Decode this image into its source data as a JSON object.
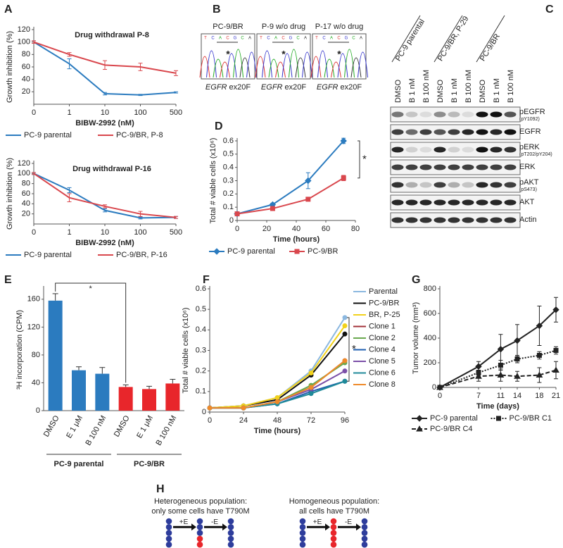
{
  "chart_data": [
    {
      "type": "line",
      "panel": "A",
      "title": "Drug withdrawal P-8",
      "ylabel": "Growth inhibition (%)",
      "xlabel": "BIBW-2992 (nM)",
      "categories": [
        "0",
        "1",
        "10",
        "100",
        "500"
      ],
      "ylim": [
        0,
        120
      ],
      "yticks": [
        20,
        40,
        60,
        80,
        100,
        120
      ],
      "legend": "bottom",
      "series": [
        {
          "name": "PC-9 parental",
          "color": "#2b7bbf",
          "marker": "none",
          "dash": "solid",
          "values": [
            100,
            65,
            17,
            15,
            19
          ],
          "errors": [
            2,
            8,
            2,
            1,
            1
          ]
        },
        {
          "name": "PC-9/BR, P-8",
          "color": "#d9474d",
          "marker": "none",
          "dash": "solid",
          "values": [
            100,
            80,
            63,
            60,
            50
          ],
          "errors": [
            2,
            3,
            7,
            6,
            4
          ]
        }
      ]
    },
    {
      "type": "line",
      "title": "Drug withdrawal P-16",
      "ylabel": "Growth inhibition (%)",
      "xlabel": "BIBW-2992 (nM)",
      "categories": [
        "0",
        "1",
        "10",
        "100",
        "500"
      ],
      "ylim": [
        0,
        120
      ],
      "yticks": [
        20,
        40,
        60,
        80,
        100,
        120
      ],
      "legend": "bottom",
      "series": [
        {
          "name": "PC-9 parental",
          "color": "#2b7bbf",
          "marker": "none",
          "dash": "solid",
          "values": [
            100,
            67,
            27,
            12,
            13
          ],
          "errors": [
            2,
            5,
            3,
            2,
            2
          ]
        },
        {
          "name": "PC-9/BR, P-16",
          "color": "#d9474d",
          "marker": "none",
          "dash": "solid",
          "values": [
            100,
            52,
            35,
            20,
            13
          ],
          "errors": [
            2,
            8,
            3,
            5,
            2
          ]
        }
      ]
    },
    {
      "type": "line",
      "panel": "D",
      "ylabel": "Total # viable cells (x10⁶)",
      "xlabel": "Time (hours)",
      "x": [
        0,
        24,
        48,
        72
      ],
      "xlim": [
        0,
        80
      ],
      "xticks": [
        0,
        20,
        40,
        60,
        80
      ],
      "ylim": [
        0,
        0.6
      ],
      "yticks": [
        0,
        0.1,
        0.2,
        0.3,
        0.4,
        0.5,
        0.6
      ],
      "legend": "bottom",
      "annotations": [
        "*"
      ],
      "series": [
        {
          "name": "PC-9 parental",
          "color": "#2b7bbf",
          "marker": "diamond",
          "dash": "solid",
          "values": [
            0.05,
            0.12,
            0.3,
            0.6
          ],
          "errors": [
            0.01,
            0.01,
            0.06,
            0.02
          ]
        },
        {
          "name": "PC-9/BR",
          "color": "#d9474d",
          "marker": "square",
          "dash": "solid",
          "values": [
            0.05,
            0.09,
            0.16,
            0.32
          ],
          "errors": [
            0.01,
            0.01,
            0.01,
            0.02
          ]
        }
      ]
    },
    {
      "type": "bar",
      "panel": "E",
      "ylabel": "³H incorporation (CPM)",
      "categories": [
        "DMSO",
        "E 1 μM",
        "B 100 nM",
        "DMSO",
        "E 1 μM",
        "B 100 nM"
      ],
      "values": [
        158,
        58,
        53,
        34,
        31,
        39
      ],
      "errors": [
        10,
        5,
        9,
        3,
        4,
        6
      ],
      "colors": [
        "#2b7bbf",
        "#2b7bbf",
        "#2b7bbf",
        "#e8262b",
        "#e8262b",
        "#e8262b"
      ],
      "groups": [
        "PC-9 parental",
        "PC-9/BR"
      ],
      "ylim": [
        0,
        175
      ],
      "yticks": [
        0,
        40,
        80,
        120,
        160
      ],
      "annotations": [
        "*"
      ]
    },
    {
      "type": "line",
      "panel": "F",
      "ylabel": "Total # viable cells (x10⁶)",
      "xlabel": "Time (hours)",
      "x": [
        0,
        24,
        48,
        72,
        96
      ],
      "xlim": [
        0,
        96
      ],
      "xticks": [
        0,
        24,
        48,
        72,
        96
      ],
      "ylim": [
        0,
        0.6
      ],
      "yticks": [
        0,
        0.1,
        0.2,
        0.3,
        0.4,
        0.5,
        0.6
      ],
      "legend": "right",
      "annotations": [
        "*"
      ],
      "series": [
        {
          "name": "Parental",
          "color": "#8cb8e0",
          "marker": "circle",
          "dash": "solid",
          "values": [
            0.02,
            0.03,
            0.07,
            0.2,
            0.46
          ]
        },
        {
          "name": "PC-9/BR",
          "color": "#111111",
          "marker": "circle",
          "dash": "solid",
          "values": [
            0.02,
            0.03,
            0.06,
            0.18,
            0.38
          ]
        },
        {
          "name": "BR, P-25",
          "color": "#f2d21b",
          "marker": "circle",
          "dash": "solid",
          "values": [
            0.02,
            0.03,
            0.07,
            0.19,
            0.42
          ]
        },
        {
          "name": "Clone 1",
          "color": "#a3333a",
          "marker": "circle",
          "dash": "solid",
          "values": [
            0.02,
            0.02,
            0.05,
            0.12,
            0.25
          ]
        },
        {
          "name": "Clone 2",
          "color": "#6aa84f",
          "marker": "circle",
          "dash": "solid",
          "values": [
            0.02,
            0.02,
            0.05,
            0.13,
            0.24
          ]
        },
        {
          "name": "Clone 4",
          "color": "#1f5fb0",
          "marker": "circle",
          "dash": "solid",
          "values": [
            0.02,
            0.02,
            0.04,
            0.1,
            0.15
          ]
        },
        {
          "name": "Clone 5",
          "color": "#7b4fa8",
          "marker": "circle",
          "dash": "solid",
          "values": [
            0.02,
            0.02,
            0.05,
            0.11,
            0.2
          ]
        },
        {
          "name": "Clone 6",
          "color": "#1f8a99",
          "marker": "circle",
          "dash": "solid",
          "values": [
            0.02,
            0.02,
            0.04,
            0.09,
            0.15
          ]
        },
        {
          "name": "Clone 8",
          "color": "#ef8a2a",
          "marker": "circle",
          "dash": "solid",
          "values": [
            0.02,
            0.02,
            0.05,
            0.12,
            0.25
          ]
        }
      ]
    },
    {
      "type": "line",
      "panel": "G",
      "ylabel": "Tumor volume (mm³)",
      "xlabel": "Time (days)",
      "x": [
        0,
        7,
        11,
        14,
        18,
        21
      ],
      "xlim": [
        0,
        21
      ],
      "xticks": [
        0,
        7,
        11,
        14,
        18,
        21
      ],
      "ylim": [
        0,
        800
      ],
      "yticks": [
        0,
        200,
        400,
        600,
        800
      ],
      "legend": "bottom",
      "series": [
        {
          "name": "PC-9 parental",
          "color": "#222222",
          "marker": "diamond",
          "dash": "solid",
          "values": [
            0,
            170,
            310,
            380,
            500,
            630
          ],
          "errors": [
            10,
            40,
            120,
            130,
            160,
            100
          ]
        },
        {
          "name": "PC-9/BR C1",
          "color": "#222222",
          "marker": "square",
          "dash": "dotted",
          "values": [
            0,
            120,
            180,
            230,
            260,
            300
          ],
          "errors": [
            10,
            20,
            40,
            30,
            30,
            30
          ]
        },
        {
          "name": "PC-9/BR C4",
          "color": "#222222",
          "marker": "triangle",
          "dash": "dashed",
          "values": [
            0,
            90,
            100,
            90,
            100,
            140
          ],
          "errors": [
            10,
            40,
            50,
            40,
            60,
            70
          ]
        }
      ]
    }
  ],
  "panel_b": {
    "panel": "B",
    "samples": [
      "PC-9/BR",
      "P-9 w/o drug",
      "P-17 w/o drug"
    ],
    "gene": "EGFR",
    "exon": "ex20F",
    "sequence": [
      "T",
      "C",
      "A",
      "C",
      "G",
      "C",
      "A"
    ],
    "mark": "*"
  },
  "panel_c": {
    "panel": "C",
    "groups": [
      "PC-9 parental",
      "PC-9/BR, P-29",
      "PC-9/BR"
    ],
    "lanes": [
      "DMSO",
      "B 1 nM",
      "B 100 nM"
    ],
    "rows": [
      {
        "name": "pEGFR",
        "detail": "(pY1092)"
      },
      {
        "name": "EGFR"
      },
      {
        "name": "pERK",
        "detail": "(pT202/pY204)"
      },
      {
        "name": "ERK"
      },
      {
        "name": "pAKT",
        "detail": "(pS473)"
      },
      {
        "name": "AKT"
      },
      {
        "name": "Actin"
      }
    ]
  },
  "panel_h": {
    "panel": "H",
    "left": [
      "Heterogeneous population:",
      "only some cells have T790M"
    ],
    "right": [
      "Homogeneous population:",
      "all cells have T790M"
    ],
    "steps": [
      "+E",
      "-E"
    ]
  }
}
